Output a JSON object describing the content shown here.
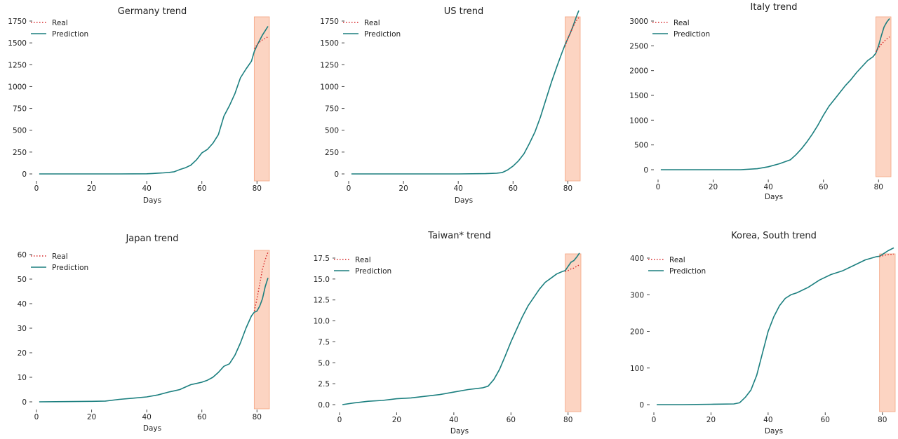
{
  "colors": {
    "real": "#d62728",
    "prediction": "#1b7f7f",
    "highlight": "#fbc9b3"
  },
  "chart_data": [
    {
      "type": "line",
      "title": "Germany trend",
      "xlabel": "Days",
      "ylabel": "",
      "xlim": [
        0,
        84
      ],
      "ylim": [
        0,
        1750
      ],
      "xticks": [
        0,
        20,
        40,
        60,
        80
      ],
      "yticks": [
        0,
        250,
        500,
        750,
        1000,
        1250,
        1500,
        1750
      ],
      "ytick_labels": [
        "0",
        "250",
        "500",
        "750",
        "1000",
        "1250",
        "1500",
        "1750"
      ],
      "legend": {
        "position": "top-left",
        "entries": [
          "Real",
          "Prediction"
        ]
      },
      "highlight_x": [
        79,
        84
      ],
      "series": [
        {
          "name": "Real",
          "style": "dotted",
          "x": [
            79,
            80,
            81,
            82,
            83,
            84
          ],
          "y": [
            1434,
            1478,
            1510,
            1535,
            1552,
            1570
          ]
        },
        {
          "name": "Prediction",
          "style": "solid",
          "x": [
            1,
            10,
            20,
            30,
            40,
            42,
            44,
            46,
            48,
            50,
            52,
            54,
            56,
            58,
            60,
            62,
            64,
            66,
            68,
            70,
            72,
            74,
            76,
            78,
            79,
            80,
            81,
            82,
            83,
            84
          ],
          "y": [
            0,
            0,
            0,
            0,
            2,
            5,
            9,
            12,
            17,
            25,
            50,
            70,
            100,
            160,
            240,
            280,
            350,
            450,
            660,
            780,
            920,
            1100,
            1200,
            1290,
            1400,
            1470,
            1530,
            1590,
            1640,
            1690
          ]
        }
      ]
    },
    {
      "type": "line",
      "title": "US trend",
      "xlabel": "Days",
      "ylabel": "",
      "xlim": [
        0,
        84
      ],
      "ylim": [
        0,
        1750
      ],
      "xticks": [
        0,
        20,
        40,
        60,
        80
      ],
      "yticks": [
        0,
        250,
        500,
        750,
        1000,
        1250,
        1500,
        1750
      ],
      "ytick_labels": [
        "0",
        "250",
        "500",
        "750",
        "1000",
        "1250",
        "1500",
        "1750"
      ],
      "legend": {
        "position": "top-left",
        "entries": [
          "Real",
          "Prediction"
        ]
      },
      "highlight_x": [
        79,
        84
      ],
      "series": [
        {
          "name": "Real",
          "style": "dotted",
          "x": [
            79,
            80,
            81,
            82,
            83,
            84
          ],
          "y": [
            1460,
            1550,
            1620,
            1690,
            1750,
            1790
          ]
        },
        {
          "name": "Prediction",
          "style": "solid",
          "x": [
            1,
            10,
            20,
            30,
            40,
            50,
            54,
            56,
            58,
            60,
            62,
            64,
            66,
            68,
            70,
            72,
            74,
            76,
            78,
            79,
            80,
            81,
            82,
            83,
            84
          ],
          "y": [
            0,
            0,
            0,
            0,
            0,
            3,
            8,
            15,
            45,
            90,
            150,
            230,
            350,
            480,
            650,
            850,
            1050,
            1230,
            1400,
            1480,
            1550,
            1620,
            1700,
            1790,
            1870
          ]
        }
      ]
    },
    {
      "type": "line",
      "title": "Italy trend",
      "xlabel": "Days",
      "ylabel": "",
      "xlim": [
        0,
        84
      ],
      "ylim": [
        0,
        3000
      ],
      "xticks": [
        0,
        20,
        40,
        60,
        80
      ],
      "yticks": [
        0,
        500,
        1000,
        1500,
        2000,
        2500,
        3000
      ],
      "ytick_labels": [
        "0",
        "500",
        "1000",
        "1500",
        "2000",
        "2500",
        "3000"
      ],
      "legend": {
        "position": "top-left",
        "entries": [
          "Real",
          "Prediction"
        ]
      },
      "highlight_x": [
        79,
        84
      ],
      "series": [
        {
          "name": "Real",
          "style": "dotted",
          "x": [
            79,
            80,
            81,
            82,
            83,
            84
          ],
          "y": [
            2380,
            2460,
            2530,
            2590,
            2640,
            2680
          ]
        },
        {
          "name": "Prediction",
          "style": "solid",
          "x": [
            1,
            10,
            20,
            30,
            36,
            40,
            44,
            48,
            50,
            52,
            54,
            56,
            58,
            60,
            62,
            64,
            66,
            68,
            70,
            72,
            74,
            76,
            78,
            79,
            80,
            81,
            82,
            83,
            84
          ],
          "y": [
            0,
            0,
            0,
            0,
            20,
            60,
            120,
            200,
            300,
            420,
            560,
            720,
            900,
            1100,
            1280,
            1420,
            1560,
            1700,
            1820,
            1960,
            2080,
            2200,
            2280,
            2350,
            2500,
            2700,
            2880,
            2980,
            3050
          ]
        }
      ]
    },
    {
      "type": "line",
      "title": "Japan trend",
      "xlabel": "Days",
      "ylabel": "",
      "xlim": [
        0,
        84
      ],
      "ylim": [
        0,
        60
      ],
      "xticks": [
        0,
        20,
        40,
        60,
        80
      ],
      "yticks": [
        0,
        10,
        20,
        30,
        40,
        50,
        60
      ],
      "ytick_labels": [
        "0",
        "10",
        "20",
        "30",
        "40",
        "50",
        "60"
      ],
      "legend": {
        "position": "top-left",
        "entries": [
          "Real",
          "Prediction"
        ]
      },
      "highlight_x": [
        79,
        84
      ],
      "series": [
        {
          "name": "Real",
          "style": "dotted",
          "x": [
            79,
            80,
            81,
            82,
            83,
            84
          ],
          "y": [
            37,
            42,
            48,
            54,
            58,
            61
          ]
        },
        {
          "name": "Prediction",
          "style": "solid",
          "x": [
            1,
            10,
            20,
            25,
            30,
            35,
            40,
            44,
            48,
            50,
            52,
            54,
            56,
            58,
            60,
            62,
            64,
            66,
            68,
            70,
            72,
            74,
            76,
            78,
            79,
            80,
            81,
            82,
            83,
            84
          ],
          "y": [
            0,
            0.1,
            0.2,
            0.3,
            1,
            1.5,
            2,
            2.8,
            4,
            4.5,
            5,
            6,
            7,
            7.5,
            8,
            8.8,
            10,
            12,
            14.5,
            15.5,
            19,
            24,
            30,
            35,
            36.5,
            37,
            39,
            42,
            47,
            50.5
          ]
        }
      ]
    },
    {
      "type": "line",
      "title": "Taiwan* trend",
      "xlabel": "Days",
      "ylabel": "",
      "xlim": [
        0,
        84
      ],
      "ylim": [
        0,
        17.5
      ],
      "xticks": [
        0,
        20,
        40,
        60,
        80
      ],
      "yticks": [
        0,
        2.5,
        5,
        7.5,
        10,
        12.5,
        15,
        17.5
      ],
      "ytick_labels": [
        "0.0",
        "2.5",
        "5.0",
        "7.5",
        "10.0",
        "12.5",
        "15.0",
        "17.5"
      ],
      "legend": {
        "position": "top-left",
        "entries": [
          "Real",
          "Prediction"
        ]
      },
      "highlight_x": [
        79,
        84
      ],
      "series": [
        {
          "name": "Real",
          "style": "dotted",
          "x": [
            79,
            80,
            81,
            82,
            83,
            84
          ],
          "y": [
            15.9,
            16.0,
            16.2,
            16.3,
            16.5,
            16.7
          ]
        },
        {
          "name": "Prediction",
          "style": "solid",
          "x": [
            1,
            5,
            10,
            15,
            20,
            25,
            30,
            35,
            40,
            45,
            50,
            52,
            54,
            56,
            58,
            60,
            62,
            64,
            66,
            68,
            70,
            72,
            74,
            76,
            78,
            79,
            80,
            81,
            82,
            83,
            84
          ],
          "y": [
            0,
            0.2,
            0.4,
            0.5,
            0.7,
            0.8,
            1.0,
            1.2,
            1.5,
            1.8,
            2.0,
            2.2,
            3.0,
            4.2,
            5.8,
            7.5,
            9.0,
            10.5,
            11.8,
            12.8,
            13.8,
            14.6,
            15.1,
            15.6,
            15.9,
            16.0,
            16.5,
            17.0,
            17.2,
            17.6,
            18.1
          ]
        }
      ]
    },
    {
      "type": "line",
      "title": "Korea, South trend",
      "xlabel": "Days",
      "ylabel": "",
      "xlim": [
        0,
        84
      ],
      "ylim": [
        0,
        400
      ],
      "xticks": [
        0,
        20,
        40,
        60,
        80
      ],
      "yticks": [
        0,
        100,
        200,
        300,
        400
      ],
      "ytick_labels": [
        "0",
        "100",
        "200",
        "300",
        "400"
      ],
      "legend": {
        "position": "top-left",
        "entries": [
          "Real",
          "Prediction"
        ]
      },
      "highlight_x": [
        79,
        84
      ],
      "series": [
        {
          "name": "Real",
          "style": "dotted",
          "x": [
            79,
            80,
            81,
            82,
            83,
            84
          ],
          "y": [
            404,
            406,
            408,
            409,
            410,
            411
          ]
        },
        {
          "name": "Prediction",
          "style": "solid",
          "x": [
            1,
            10,
            20,
            28,
            30,
            32,
            34,
            36,
            38,
            40,
            42,
            44,
            46,
            48,
            50,
            54,
            58,
            62,
            66,
            70,
            74,
            78,
            79,
            80,
            81,
            82,
            83,
            84
          ],
          "y": [
            0,
            0,
            1,
            2,
            5,
            20,
            40,
            80,
            140,
            200,
            240,
            270,
            290,
            300,
            305,
            320,
            340,
            355,
            365,
            380,
            395,
            404,
            405,
            410,
            415,
            420,
            424,
            428
          ]
        }
      ]
    }
  ]
}
